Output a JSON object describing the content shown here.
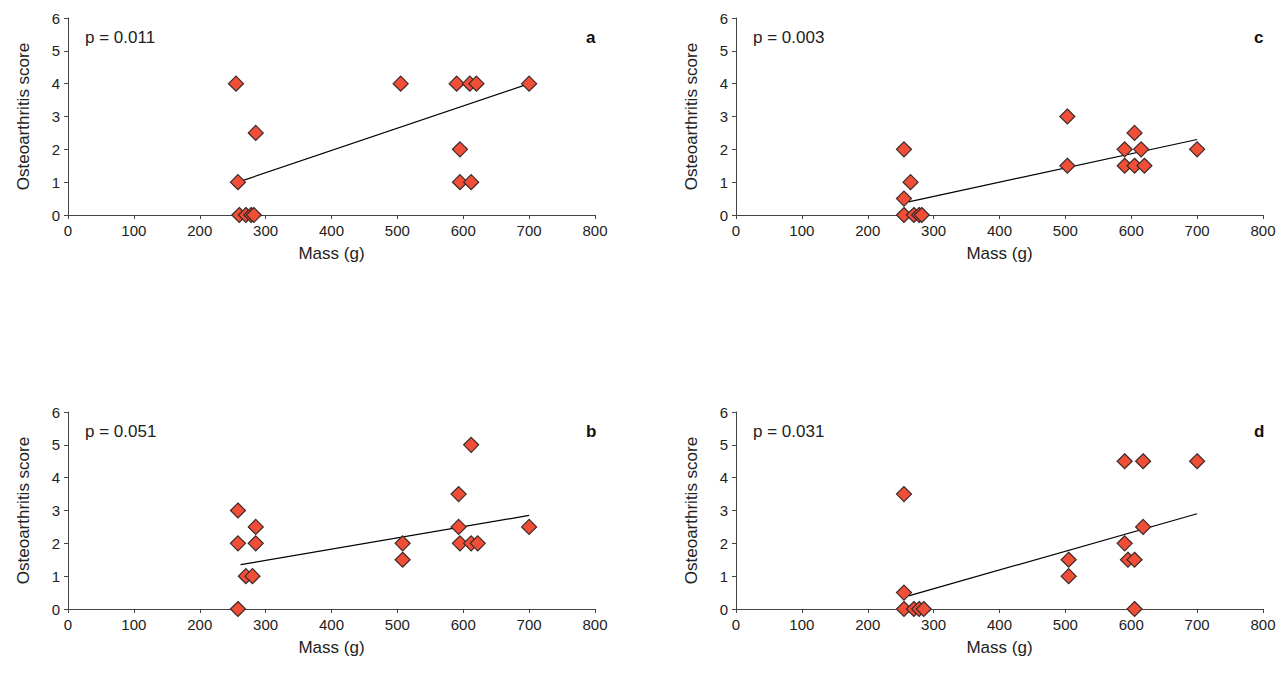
{
  "chart_data": [
    {
      "type": "scatter",
      "title": "a",
      "annotation": "p = 0.011",
      "xlabel": "Mass (g)",
      "ylabel": "Osteoarthritis score",
      "xlim": [
        0,
        800
      ],
      "xticks": [
        0,
        100,
        200,
        300,
        400,
        500,
        600,
        700,
        800
      ],
      "ylim": [
        0,
        6
      ],
      "yticks": [
        0,
        1,
        2,
        3,
        4,
        5,
        6
      ],
      "grid": false,
      "series": [
        {
          "type": "scatter",
          "marker": "diamond",
          "color": "#f04e37",
          "x": [
            255,
            258,
            260,
            270,
            278,
            282,
            285,
            505,
            590,
            595,
            595,
            610,
            620,
            612,
            700
          ],
          "values": [
            4,
            1,
            0,
            0,
            0,
            0,
            2.5,
            4,
            4,
            2,
            1,
            4,
            4,
            1,
            4
          ]
        },
        {
          "type": "line",
          "color": "#000000",
          "line_style": "solid",
          "x": [
            258,
            700
          ],
          "values": [
            1.0,
            4.0
          ]
        }
      ]
    },
    {
      "type": "scatter",
      "title": "b",
      "annotation": "p = 0.051",
      "xlabel": "Mass (g)",
      "ylabel": "Osteoarthritis score",
      "xlim": [
        0,
        800
      ],
      "xticks": [
        0,
        100,
        200,
        300,
        400,
        500,
        600,
        700,
        800
      ],
      "ylim": [
        0,
        6
      ],
      "yticks": [
        0,
        1,
        2,
        3,
        4,
        5,
        6
      ],
      "grid": false,
      "series": [
        {
          "type": "scatter",
          "marker": "diamond",
          "color": "#f04e37",
          "x": [
            258,
            258,
            258,
            270,
            280,
            285,
            285,
            508,
            508,
            593,
            593,
            595,
            612,
            612,
            622,
            700
          ],
          "values": [
            3,
            2,
            0,
            1,
            1,
            2.5,
            2,
            2,
            1.5,
            3.5,
            2.5,
            2,
            5,
            2,
            2,
            2.5
          ]
        },
        {
          "type": "line",
          "color": "#000000",
          "line_style": "solid",
          "x": [
            262,
            700
          ],
          "values": [
            1.35,
            2.85
          ]
        }
      ]
    },
    {
      "type": "scatter",
      "title": "c",
      "annotation": "p = 0.003",
      "xlabel": "Mass (g)",
      "ylabel": "Osteoarthritis score",
      "xlim": [
        0,
        800
      ],
      "xticks": [
        0,
        100,
        200,
        300,
        400,
        500,
        600,
        700,
        800
      ],
      "ylim": [
        0,
        6
      ],
      "yticks": [
        0,
        1,
        2,
        3,
        4,
        5,
        6
      ],
      "grid": false,
      "series": [
        {
          "type": "scatter",
          "marker": "diamond",
          "color": "#f04e37",
          "x": [
            255,
            255,
            255,
            265,
            270,
            278,
            282,
            503,
            503,
            590,
            590,
            605,
            605,
            615,
            620,
            700
          ],
          "values": [
            2,
            0.5,
            0,
            1,
            0,
            0,
            0,
            3,
            1.5,
            2,
            1.5,
            2.5,
            1.5,
            2,
            1.5,
            2
          ]
        },
        {
          "type": "line",
          "color": "#000000",
          "line_style": "solid",
          "x": [
            262,
            700
          ],
          "values": [
            0.4,
            2.3
          ]
        }
      ]
    },
    {
      "type": "scatter",
      "title": "d",
      "annotation": "p = 0.031",
      "xlabel": "Mass (g)",
      "ylabel": "Osteoarthritis score",
      "xlim": [
        0,
        800
      ],
      "xticks": [
        0,
        100,
        200,
        300,
        400,
        500,
        600,
        700,
        800
      ],
      "ylim": [
        0,
        6
      ],
      "yticks": [
        0,
        1,
        2,
        3,
        4,
        5,
        6
      ],
      "grid": false,
      "series": [
        {
          "type": "scatter",
          "marker": "diamond",
          "color": "#f04e37",
          "x": [
            255,
            255,
            255,
            270,
            278,
            285,
            505,
            505,
            590,
            590,
            595,
            605,
            605,
            618,
            618,
            700
          ],
          "values": [
            3.5,
            0.5,
            0,
            0,
            0,
            0,
            1.5,
            1,
            4.5,
            2,
            1.5,
            1.5,
            0,
            4.5,
            2.5,
            4.5
          ]
        },
        {
          "type": "line",
          "color": "#000000",
          "line_style": "solid",
          "x": [
            262,
            700
          ],
          "values": [
            0.4,
            2.9
          ]
        }
      ]
    }
  ]
}
